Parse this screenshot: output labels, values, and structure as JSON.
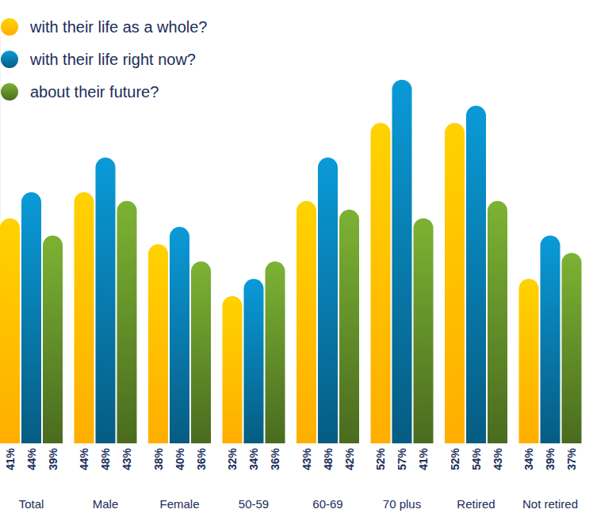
{
  "chart_data": {
    "type": "bar",
    "categories": [
      "Total",
      "Male",
      "Female",
      "50-59",
      "60-69",
      "70 plus",
      "Retired",
      "Not retired"
    ],
    "series": [
      {
        "name": "with their life as a whole?",
        "color": "#ffd200",
        "values": [
          41,
          44,
          38,
          32,
          43,
          52,
          52,
          34
        ],
        "value_labels": [
          "41%",
          "44%",
          "38%",
          "32%",
          "43%",
          "52%",
          "52%",
          "34%"
        ]
      },
      {
        "name": "with their life right now?",
        "color": "#0a9ad8",
        "values": [
          44,
          48,
          40,
          34,
          48,
          57,
          54,
          39
        ],
        "value_labels": [
          "44%",
          "48%",
          "40%",
          "34%",
          "48%",
          "57%",
          "54%",
          "39%"
        ]
      },
      {
        "name": "about their future?",
        "color": "#7cb333",
        "values": [
          39,
          43,
          36,
          36,
          42,
          41,
          43,
          37
        ],
        "value_labels": [
          "39%",
          "43%",
          "36%",
          "36%",
          "42%",
          "41%",
          "43%",
          "37%"
        ]
      }
    ],
    "ylim": [
      15,
      62
    ],
    "grid": false,
    "legend": "top-left",
    "data_labels": true,
    "tick_labels": false
  }
}
